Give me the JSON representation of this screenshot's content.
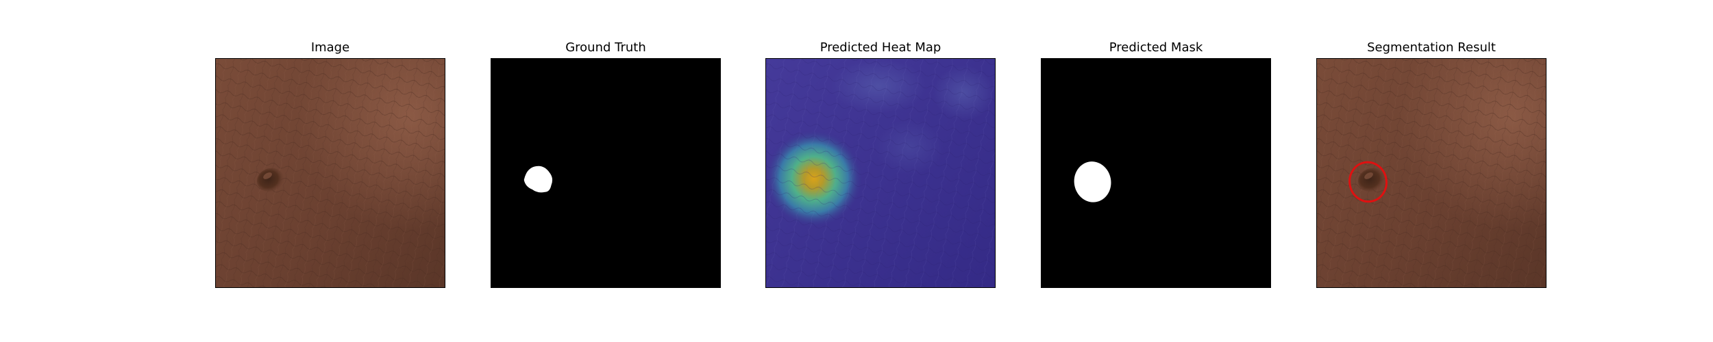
{
  "figure": {
    "panels": [
      {
        "id": "image",
        "title": "Image"
      },
      {
        "id": "ground-truth",
        "title": "Ground Truth"
      },
      {
        "id": "heat-map",
        "title": "Predicted Heat Map"
      },
      {
        "id": "predicted-mask",
        "title": "Predicted Mask"
      },
      {
        "id": "segmentation-result",
        "title": "Segmentation Result"
      }
    ],
    "colors": {
      "leather": "#6e4433",
      "leather_light": "#8a5a45",
      "mask_background": "#000000",
      "mask_foreground": "#ffffff",
      "heatmap_base": "#3a2f8c",
      "heatmap_hot": "#d9a21a",
      "contour": "#e01010"
    }
  }
}
